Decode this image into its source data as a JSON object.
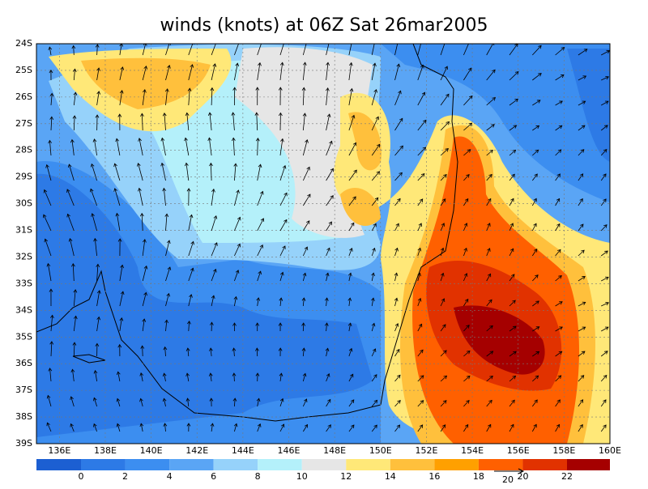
{
  "title": "winds (knots) at 06Z Sat 26mar2005",
  "map": {
    "lat_labels": [
      "24S",
      "25S",
      "26S",
      "27S",
      "28S",
      "29S",
      "30S",
      "31S",
      "32S",
      "33S",
      "34S",
      "35S",
      "36S",
      "37S",
      "38S",
      "39S"
    ],
    "lon_labels": [
      "136E",
      "138E",
      "140E",
      "142E",
      "144E",
      "146E",
      "148E",
      "150E",
      "152E",
      "154E",
      "156E",
      "158E",
      "160E"
    ]
  },
  "colorbar": {
    "labels": [
      "0",
      "2",
      "4",
      "6",
      "8",
      "10",
      "12",
      "14",
      "16",
      "18",
      "20",
      "22"
    ],
    "colors": [
      "#1c5fd2",
      "#2d7ae6",
      "#3c8ef0",
      "#5aa5f5",
      "#96d2fa",
      "#b4f0fa",
      "#e6e6e6",
      "#ffe878",
      "#ffc03c",
      "#ffa000",
      "#ff6000",
      "#e13200",
      "#a50000"
    ]
  },
  "vector_reference": {
    "label": "20"
  }
}
